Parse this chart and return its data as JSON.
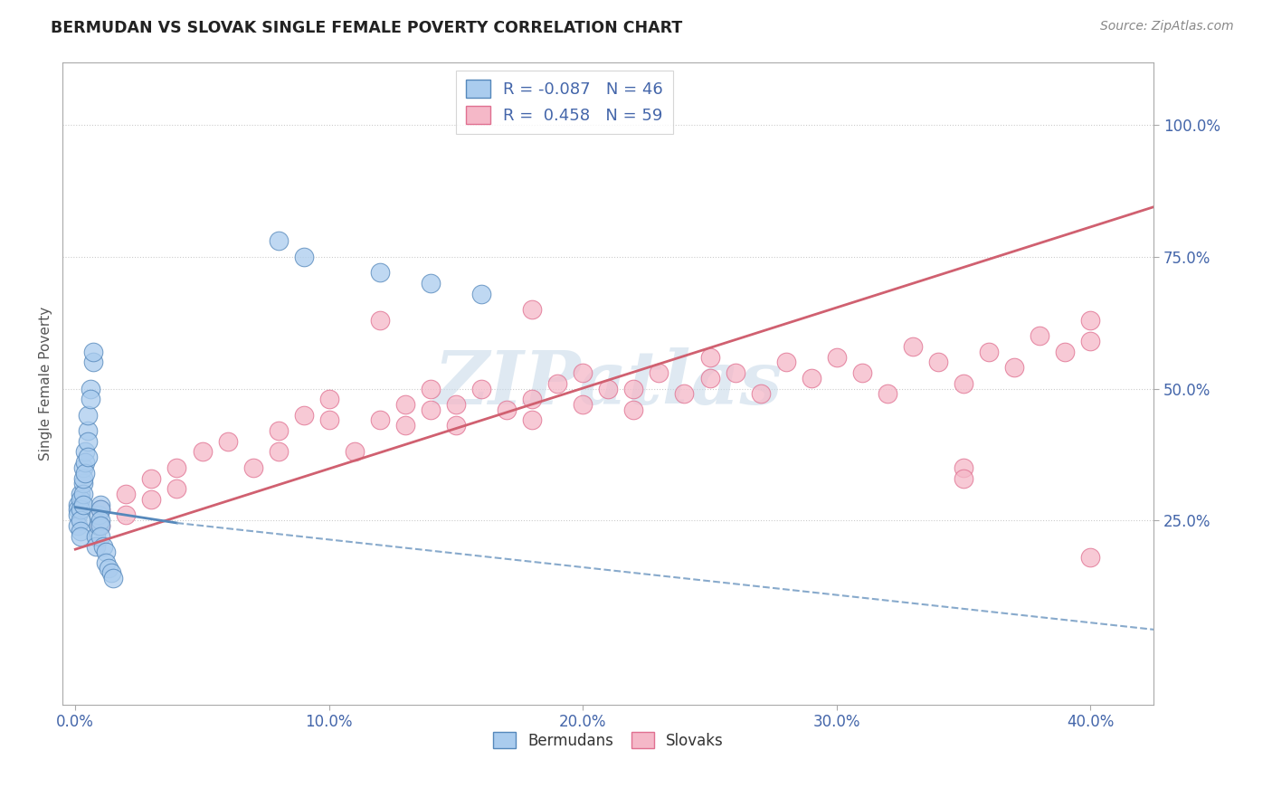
{
  "title": "BERMUDAN VS SLOVAK SINGLE FEMALE POVERTY CORRELATION CHART",
  "source": "Source: ZipAtlas.com",
  "ylabel": "Single Female Poverty",
  "y_tick_values": [
    0.25,
    0.5,
    0.75,
    1.0
  ],
  "y_tick_labels": [
    "25.0%",
    "50.0%",
    "75.0%",
    "100.0%"
  ],
  "x_tick_values": [
    0.0,
    0.1,
    0.2,
    0.3,
    0.4
  ],
  "x_tick_labels": [
    "0.0%",
    "10.0%",
    "20.0%",
    "30.0%",
    "40.0%"
  ],
  "x_lim": [
    -0.005,
    0.425
  ],
  "y_lim": [
    -0.1,
    1.12
  ],
  "bermudan_color": "#aaccee",
  "bermudan_edge": "#5588bb",
  "slovak_color": "#f5b8c8",
  "slovak_edge": "#e07090",
  "bermudan_R": -0.087,
  "bermudan_N": 46,
  "slovak_R": 0.458,
  "slovak_N": 59,
  "watermark_color": "#c5d8e8",
  "legend_color": "#4466aa",
  "grid_color": "#cccccc",
  "bermudan_trendline_solid": [
    [
      0.0,
      0.275
    ],
    [
      0.04,
      0.245
    ]
  ],
  "bermudan_trendline_dashed": [
    [
      0.04,
      0.245
    ],
    [
      0.43,
      0.04
    ]
  ],
  "slovak_trendline": [
    [
      0.0,
      0.195
    ],
    [
      0.425,
      0.845
    ]
  ],
  "bermudan_x": [
    0.001,
    0.001,
    0.001,
    0.001,
    0.002,
    0.002,
    0.002,
    0.002,
    0.002,
    0.002,
    0.003,
    0.003,
    0.003,
    0.003,
    0.003,
    0.004,
    0.004,
    0.004,
    0.005,
    0.005,
    0.005,
    0.005,
    0.006,
    0.006,
    0.007,
    0.007,
    0.008,
    0.008,
    0.009,
    0.009,
    0.01,
    0.01,
    0.01,
    0.01,
    0.01,
    0.011,
    0.012,
    0.012,
    0.013,
    0.014,
    0.015,
    0.08,
    0.09,
    0.12,
    0.14,
    0.16
  ],
  "bermudan_y": [
    0.28,
    0.27,
    0.26,
    0.24,
    0.3,
    0.29,
    0.27,
    0.25,
    0.23,
    0.22,
    0.32,
    0.3,
    0.28,
    0.35,
    0.33,
    0.38,
    0.36,
    0.34,
    0.42,
    0.4,
    0.37,
    0.45,
    0.5,
    0.48,
    0.55,
    0.57,
    0.22,
    0.2,
    0.24,
    0.26,
    0.28,
    0.27,
    0.25,
    0.24,
    0.22,
    0.2,
    0.19,
    0.17,
    0.16,
    0.15,
    0.14,
    0.78,
    0.75,
    0.72,
    0.7,
    0.68
  ],
  "slovak_x": [
    0.01,
    0.01,
    0.02,
    0.02,
    0.03,
    0.03,
    0.04,
    0.04,
    0.05,
    0.06,
    0.07,
    0.08,
    0.08,
    0.09,
    0.1,
    0.1,
    0.11,
    0.12,
    0.13,
    0.13,
    0.14,
    0.14,
    0.15,
    0.15,
    0.16,
    0.17,
    0.18,
    0.18,
    0.19,
    0.2,
    0.2,
    0.21,
    0.22,
    0.22,
    0.23,
    0.24,
    0.25,
    0.25,
    0.26,
    0.27,
    0.28,
    0.29,
    0.3,
    0.31,
    0.32,
    0.33,
    0.34,
    0.35,
    0.36,
    0.37,
    0.38,
    0.39,
    0.4,
    0.4,
    0.12,
    0.18,
    0.35,
    0.35,
    0.4
  ],
  "slovak_y": [
    0.27,
    0.24,
    0.3,
    0.26,
    0.33,
    0.29,
    0.35,
    0.31,
    0.38,
    0.4,
    0.35,
    0.42,
    0.38,
    0.45,
    0.48,
    0.44,
    0.38,
    0.44,
    0.47,
    0.43,
    0.5,
    0.46,
    0.43,
    0.47,
    0.5,
    0.46,
    0.44,
    0.48,
    0.51,
    0.47,
    0.53,
    0.5,
    0.46,
    0.5,
    0.53,
    0.49,
    0.52,
    0.56,
    0.53,
    0.49,
    0.55,
    0.52,
    0.56,
    0.53,
    0.49,
    0.58,
    0.55,
    0.51,
    0.57,
    0.54,
    0.6,
    0.57,
    0.63,
    0.59,
    0.63,
    0.65,
    0.35,
    0.33,
    0.18
  ]
}
